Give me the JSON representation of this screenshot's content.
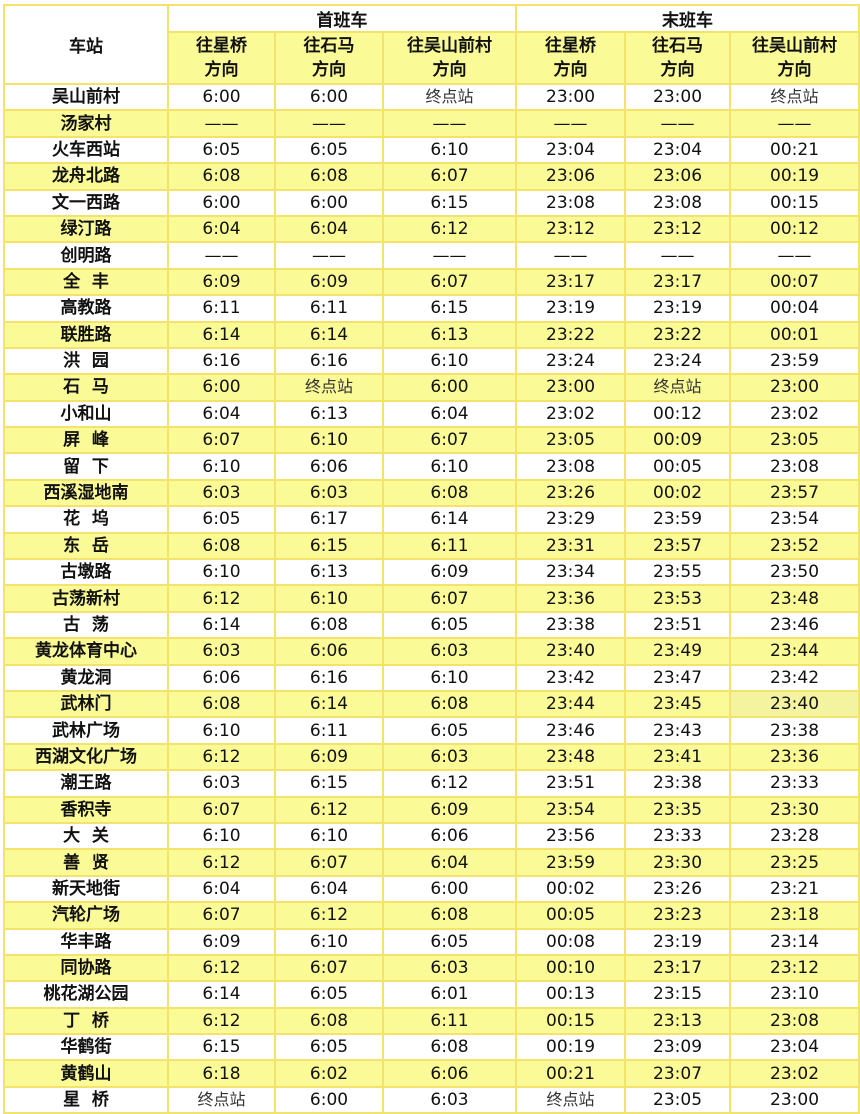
{
  "header": {
    "station": "车站",
    "first_train": "首班车",
    "last_train": "末班车",
    "directions": [
      "往星桥\n方向",
      "往石马\n方向",
      "往吴山前村\n方向",
      "往星桥\n方向",
      "往石马\n方向",
      "往吴山前村\n方向"
    ]
  },
  "colors": {
    "highlight": "#fafa96",
    "border": "#f3e36c"
  },
  "rows": [
    {
      "station": "吴山前村",
      "times": [
        "6:00",
        "6:00",
        "终点站",
        "23:00",
        "23:00",
        "终点站"
      ]
    },
    {
      "station": "汤家村",
      "times": [
        "——",
        "——",
        "——",
        "——",
        "——",
        "——"
      ]
    },
    {
      "station": "火车西站",
      "times": [
        "6:05",
        "6:05",
        "6:10",
        "23:04",
        "23:04",
        "00:21"
      ]
    },
    {
      "station": "龙舟北路",
      "times": [
        "6:08",
        "6:08",
        "6:07",
        "23:06",
        "23:06",
        "00:19"
      ]
    },
    {
      "station": "文一西路",
      "times": [
        "6:00",
        "6:00",
        "6:15",
        "23:08",
        "23:08",
        "00:15"
      ]
    },
    {
      "station": "绿汀路",
      "times": [
        "6:04",
        "6:04",
        "6:12",
        "23:12",
        "23:12",
        "00:12"
      ]
    },
    {
      "station": "创明路",
      "times": [
        "——",
        "——",
        "——",
        "——",
        "——",
        "——"
      ]
    },
    {
      "station": "全  丰",
      "times": [
        "6:09",
        "6:09",
        "6:07",
        "23:17",
        "23:17",
        "00:07"
      ]
    },
    {
      "station": "高教路",
      "times": [
        "6:11",
        "6:11",
        "6:15",
        "23:19",
        "23:19",
        "00:04"
      ]
    },
    {
      "station": "联胜路",
      "times": [
        "6:14",
        "6:14",
        "6:13",
        "23:22",
        "23:22",
        "00:01"
      ]
    },
    {
      "station": "洪  园",
      "times": [
        "6:16",
        "6:16",
        "6:10",
        "23:24",
        "23:24",
        "23:59"
      ]
    },
    {
      "station": "石  马",
      "times": [
        "6:00",
        "终点站",
        "6:00",
        "23:00",
        "终点站",
        "23:00"
      ]
    },
    {
      "station": "小和山",
      "times": [
        "6:04",
        "6:13",
        "6:04",
        "23:02",
        "00:12",
        "23:02"
      ]
    },
    {
      "station": "屏  峰",
      "times": [
        "6:07",
        "6:10",
        "6:07",
        "23:05",
        "00:09",
        "23:05"
      ]
    },
    {
      "station": "留  下",
      "times": [
        "6:10",
        "6:06",
        "6:10",
        "23:08",
        "00:05",
        "23:08"
      ]
    },
    {
      "station": "西溪湿地南",
      "times": [
        "6:03",
        "6:03",
        "6:08",
        "23:26",
        "00:02",
        "23:57"
      ]
    },
    {
      "station": "花  坞",
      "times": [
        "6:05",
        "6:17",
        "6:14",
        "23:29",
        "23:59",
        "23:54"
      ]
    },
    {
      "station": "东  岳",
      "times": [
        "6:08",
        "6:15",
        "6:11",
        "23:31",
        "23:57",
        "23:52"
      ]
    },
    {
      "station": "古墩路",
      "times": [
        "6:10",
        "6:13",
        "6:09",
        "23:34",
        "23:55",
        "23:50"
      ]
    },
    {
      "station": "古荡新村",
      "times": [
        "6:12",
        "6:10",
        "6:07",
        "23:36",
        "23:53",
        "23:48"
      ]
    },
    {
      "station": "古  荡",
      "times": [
        "6:14",
        "6:08",
        "6:05",
        "23:38",
        "23:51",
        "23:46"
      ]
    },
    {
      "station": "黄龙体育中心",
      "times": [
        "6:03",
        "6:06",
        "6:03",
        "23:40",
        "23:49",
        "23:44"
      ]
    },
    {
      "station": "黄龙洞",
      "times": [
        "6:06",
        "6:16",
        "6:10",
        "23:42",
        "23:47",
        "23:42"
      ]
    },
    {
      "station": "武林门",
      "times": [
        "6:08",
        "6:14",
        "6:08",
        "23:44",
        "23:45",
        "23:40"
      ]
    },
    {
      "station": "武林广场",
      "times": [
        "6:10",
        "6:11",
        "6:05",
        "23:46",
        "23:43",
        "23:38"
      ]
    },
    {
      "station": "西湖文化广场",
      "times": [
        "6:12",
        "6:09",
        "6:03",
        "23:48",
        "23:41",
        "23:36"
      ]
    },
    {
      "station": "潮王路",
      "times": [
        "6:03",
        "6:15",
        "6:12",
        "23:51",
        "23:38",
        "23:33"
      ]
    },
    {
      "station": "香积寺",
      "times": [
        "6:07",
        "6:12",
        "6:09",
        "23:54",
        "23:35",
        "23:30"
      ]
    },
    {
      "station": "大  关",
      "times": [
        "6:10",
        "6:10",
        "6:06",
        "23:56",
        "23:33",
        "23:28"
      ]
    },
    {
      "station": "善  贤",
      "times": [
        "6:12",
        "6:07",
        "6:04",
        "23:59",
        "23:30",
        "23:25"
      ]
    },
    {
      "station": "新天地街",
      "times": [
        "6:04",
        "6:04",
        "6:00",
        "00:02",
        "23:26",
        "23:21"
      ]
    },
    {
      "station": "汽轮广场",
      "times": [
        "6:07",
        "6:12",
        "6:08",
        "00:05",
        "23:23",
        "23:18"
      ]
    },
    {
      "station": "华丰路",
      "times": [
        "6:09",
        "6:10",
        "6:05",
        "00:08",
        "23:19",
        "23:14"
      ]
    },
    {
      "station": "同协路",
      "times": [
        "6:12",
        "6:07",
        "6:03",
        "00:10",
        "23:17",
        "23:12"
      ]
    },
    {
      "station": "桃花湖公园",
      "times": [
        "6:14",
        "6:05",
        "6:01",
        "00:13",
        "23:15",
        "23:10"
      ]
    },
    {
      "station": "丁  桥",
      "times": [
        "6:12",
        "6:08",
        "6:11",
        "00:15",
        "23:13",
        "23:08"
      ]
    },
    {
      "station": "华鹤街",
      "times": [
        "6:15",
        "6:05",
        "6:08",
        "00:19",
        "23:09",
        "23:04"
      ]
    },
    {
      "station": "黄鹤山",
      "times": [
        "6:18",
        "6:02",
        "6:06",
        "00:21",
        "23:07",
        "23:02"
      ]
    },
    {
      "station": "星  桥",
      "times": [
        "终点站",
        "6:00",
        "6:03",
        "终点站",
        "23:05",
        "23:00"
      ]
    }
  ]
}
